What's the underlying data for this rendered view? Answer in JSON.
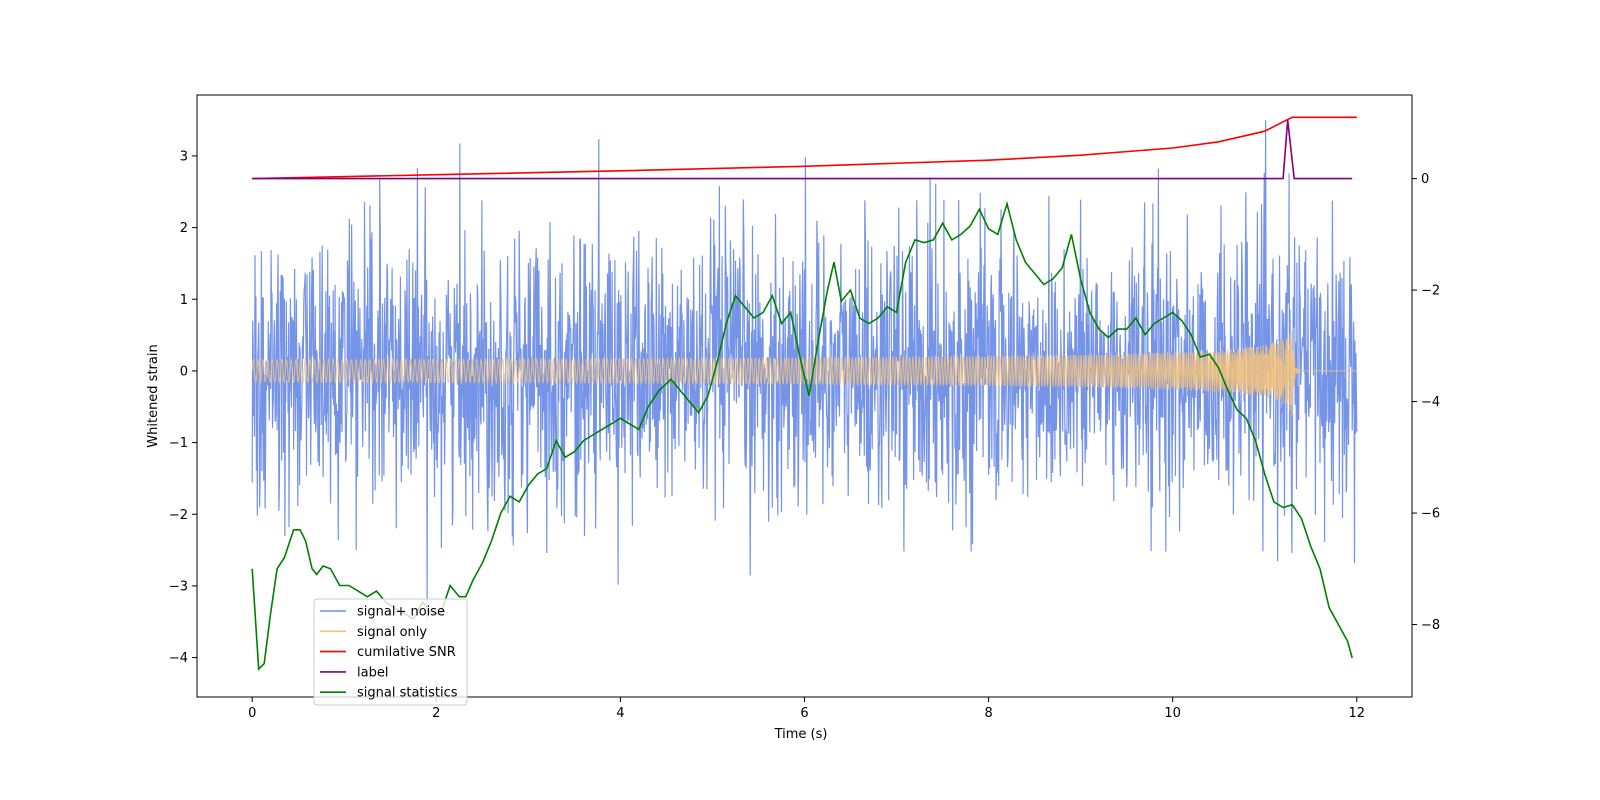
{
  "chart_data": {
    "type": "line",
    "title": "",
    "xlabel": "Time (s)",
    "ylabel": "Whitened strain",
    "y2label": "",
    "xlim": [
      -0.6,
      12.6
    ],
    "ylim": [
      -4.55,
      3.85
    ],
    "y2lim": [
      -9.3,
      1.5
    ],
    "xticks": [
      0,
      2,
      4,
      6,
      8,
      10,
      12
    ],
    "yticks": [
      -4,
      -3,
      -2,
      -1,
      0,
      1,
      2,
      3
    ],
    "y2ticks": [
      -8,
      -6,
      -4,
      -2,
      0
    ],
    "legend_position": "lower-left",
    "series": [
      {
        "name": "signal+ noise",
        "color": "#6f8ee6",
        "axis": "left",
        "kind": "noise",
        "duration": 12,
        "sigma": 1.0
      },
      {
        "name": "signal only",
        "color": "#f5c27a",
        "axis": "left",
        "kind": "chirp",
        "merger_time": 11.3,
        "peak_amplitude": 0.75
      },
      {
        "name": "cumilative SNR",
        "color": "#ff0000",
        "axis": "right",
        "x": [
          0,
          2,
          4,
          6,
          8,
          9,
          10,
          10.5,
          11,
          11.2,
          11.3,
          12
        ],
        "y": [
          0.0,
          0.07,
          0.14,
          0.22,
          0.33,
          0.42,
          0.55,
          0.66,
          0.85,
          1.02,
          1.1,
          1.1
        ]
      },
      {
        "name": "label",
        "color": "#800080",
        "axis": "right",
        "x": [
          0,
          11.2,
          11.25,
          11.32,
          11.95
        ],
        "y": [
          0,
          0,
          1.05,
          0,
          0
        ]
      },
      {
        "name": "signal statistics",
        "color": "#008000",
        "axis": "right",
        "x": [
          0,
          0.07,
          0.13,
          0.2,
          0.27,
          0.35,
          0.45,
          0.52,
          0.58,
          0.65,
          0.7,
          0.77,
          0.85,
          0.95,
          1.05,
          1.15,
          1.25,
          1.35,
          1.45,
          1.55,
          1.65,
          1.75,
          1.85,
          1.95,
          2.05,
          2.15,
          2.25,
          2.32,
          2.4,
          2.5,
          2.6,
          2.7,
          2.8,
          2.9,
          3.0,
          3.1,
          3.2,
          3.3,
          3.4,
          3.5,
          3.6,
          3.7,
          3.8,
          3.9,
          4.0,
          4.1,
          4.2,
          4.3,
          4.42,
          4.55,
          4.65,
          4.75,
          4.85,
          4.95,
          5.05,
          5.15,
          5.25,
          5.35,
          5.45,
          5.55,
          5.65,
          5.75,
          5.85,
          5.95,
          6.05,
          6.15,
          6.25,
          6.32,
          6.4,
          6.5,
          6.6,
          6.7,
          6.8,
          6.9,
          7.0,
          7.1,
          7.2,
          7.3,
          7.4,
          7.5,
          7.6,
          7.7,
          7.8,
          7.9,
          8.0,
          8.1,
          8.2,
          8.3,
          8.4,
          8.5,
          8.6,
          8.7,
          8.8,
          8.9,
          9.0,
          9.1,
          9.2,
          9.3,
          9.4,
          9.5,
          9.6,
          9.7,
          9.8,
          9.9,
          10.0,
          10.1,
          10.2,
          10.3,
          10.4,
          10.5,
          10.6,
          10.7,
          10.8,
          10.9,
          11.0,
          11.1,
          11.2,
          11.3,
          11.4,
          11.5,
          11.6,
          11.7,
          11.8,
          11.9,
          11.95
        ],
        "y": [
          -7.0,
          -8.8,
          -8.7,
          -7.8,
          -7.0,
          -6.8,
          -6.3,
          -6.3,
          -6.5,
          -7.0,
          -7.1,
          -6.95,
          -7.0,
          -7.3,
          -7.3,
          -7.4,
          -7.5,
          -7.4,
          -7.6,
          -7.7,
          -7.8,
          -7.9,
          -7.6,
          -7.8,
          -7.8,
          -7.3,
          -7.5,
          -7.5,
          -7.2,
          -6.9,
          -6.5,
          -6.0,
          -5.7,
          -5.8,
          -5.5,
          -5.3,
          -5.2,
          -4.7,
          -5.0,
          -4.9,
          -4.7,
          -4.6,
          -4.5,
          -4.4,
          -4.3,
          -4.4,
          -4.5,
          -4.1,
          -3.8,
          -3.6,
          -3.8,
          -4.0,
          -4.2,
          -3.9,
          -3.3,
          -2.6,
          -2.1,
          -2.3,
          -2.5,
          -2.4,
          -2.1,
          -2.6,
          -2.4,
          -3.2,
          -3.9,
          -2.9,
          -2.0,
          -1.5,
          -2.2,
          -2.0,
          -2.5,
          -2.6,
          -2.5,
          -2.3,
          -2.4,
          -1.5,
          -1.1,
          -1.15,
          -1.1,
          -0.8,
          -1.1,
          -1.0,
          -0.85,
          -0.55,
          -0.9,
          -1.0,
          -0.45,
          -1.1,
          -1.5,
          -1.7,
          -1.9,
          -1.8,
          -1.6,
          -1.0,
          -1.8,
          -2.4,
          -2.7,
          -2.85,
          -2.7,
          -2.7,
          -2.5,
          -2.8,
          -2.6,
          -2.5,
          -2.4,
          -2.55,
          -2.8,
          -3.2,
          -3.15,
          -3.4,
          -3.8,
          -4.15,
          -4.3,
          -4.7,
          -5.3,
          -5.8,
          -5.9,
          -5.85,
          -6.1,
          -6.6,
          -7.0,
          -7.7,
          -8.0,
          -8.3,
          -8.6
        ]
      }
    ]
  }
}
